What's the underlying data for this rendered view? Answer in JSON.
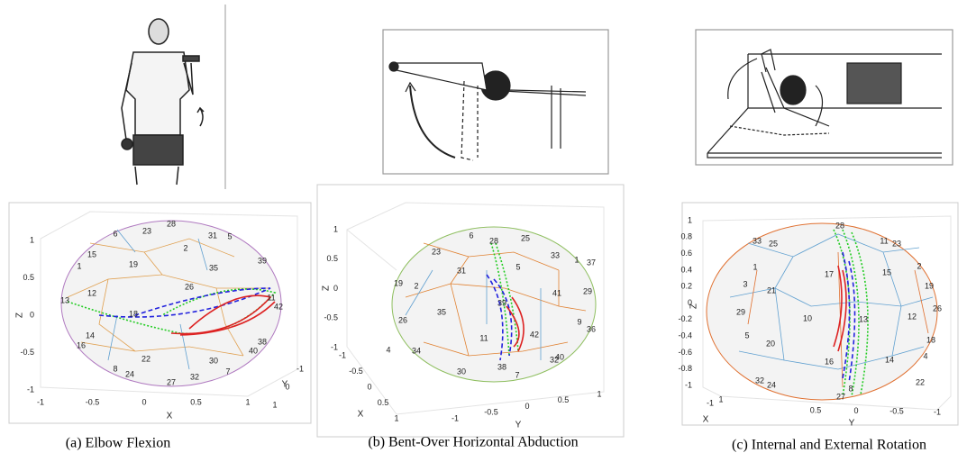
{
  "panels": [
    {
      "caption": "(a) Elbow Flexion",
      "plot": {
        "zlabel": "Z",
        "xlabel": "X",
        "ylabel": "Y",
        "zticks": [
          1,
          0.5,
          0,
          -0.5,
          -1
        ],
        "xticks": [
          -1,
          -0.5,
          0,
          0.5,
          1
        ],
        "yticks": [
          -1,
          0,
          1
        ],
        "face_labels": [
          "28",
          "6",
          "23",
          "31",
          "5",
          "15",
          "2",
          "19",
          "1",
          "35",
          "39",
          "12",
          "26",
          "13",
          "11",
          "42",
          "18",
          "14",
          "16",
          "38",
          "40",
          "22",
          "30",
          "8",
          "24",
          "7",
          "27",
          "32"
        ]
      }
    },
    {
      "caption": "(b) Bent-Over Horizontal Abduction",
      "plot": {
        "zlabel": "Z",
        "xlabel": "X",
        "ylabel": "Y",
        "zticks": [
          1,
          0.5,
          0,
          -0.5,
          -1
        ],
        "xticks": [
          -1,
          -0.5,
          0,
          0.5,
          1
        ],
        "yticks": [
          -1,
          -0.5,
          0,
          0.5,
          1
        ],
        "face_labels": [
          "6",
          "28",
          "25",
          "33",
          "1",
          "23",
          "37",
          "31",
          "5",
          "19",
          "2",
          "29",
          "41",
          "39",
          "35",
          "26",
          "9",
          "36",
          "42",
          "11",
          "34",
          "4",
          "38",
          "40",
          "32",
          "30",
          "7"
        ]
      }
    },
    {
      "caption": "(c) Internal and External Rotation",
      "plot": {
        "zlabel": "Z",
        "xlabel": "X",
        "ylabel": "Y",
        "zticks": [
          1,
          0.8,
          0.6,
          0.4,
          0.2,
          0,
          -0.2,
          -0.4,
          -0.6,
          -0.8,
          -1
        ],
        "xticks": [
          -1,
          1
        ],
        "yticks": [
          0.5,
          0,
          -0.5,
          -1
        ],
        "face_labels": [
          "28",
          "33",
          "25",
          "11",
          "23",
          "1",
          "17",
          "15",
          "2",
          "3",
          "19",
          "21",
          "10",
          "13",
          "12",
          "26",
          "29",
          "5",
          "20",
          "18",
          "4",
          "16",
          "14",
          "32",
          "24",
          "22",
          "8",
          "27"
        ]
      }
    }
  ]
}
